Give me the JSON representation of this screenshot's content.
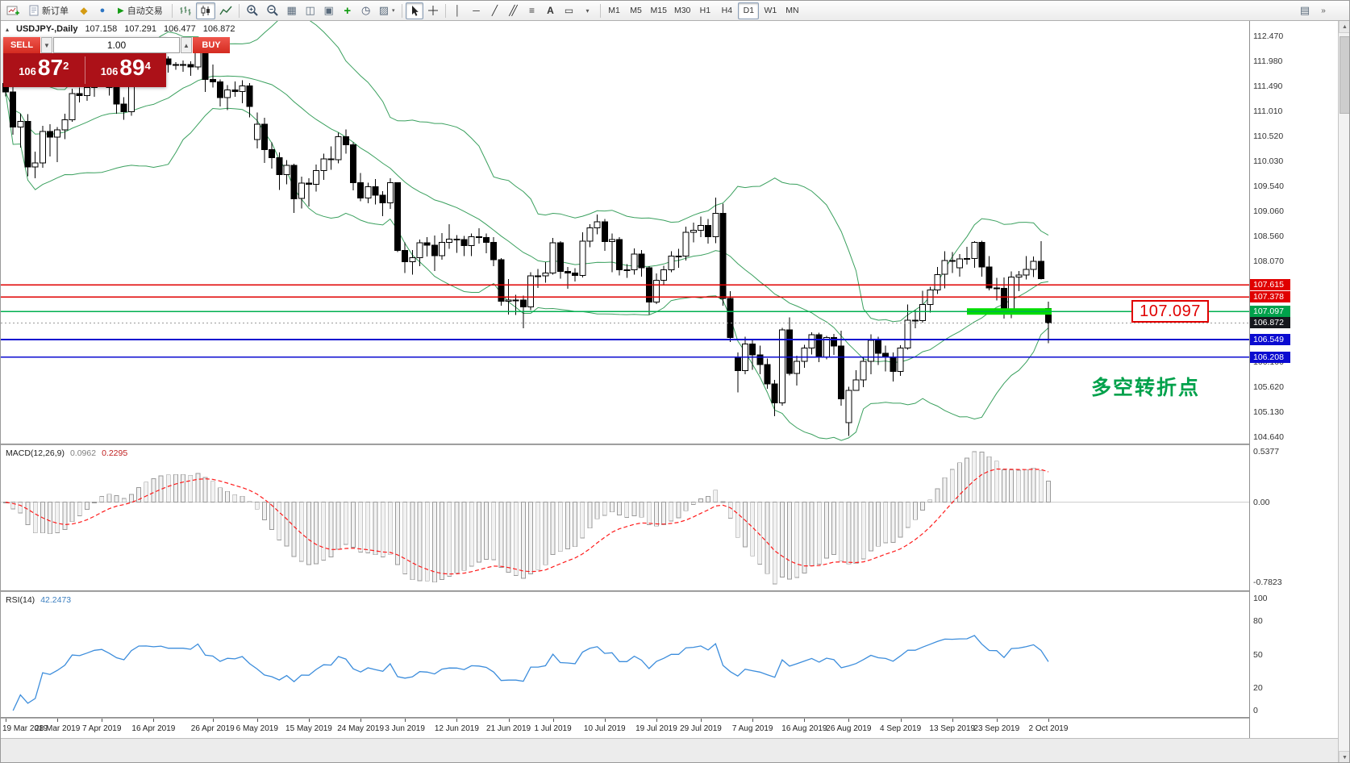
{
  "toolbar": {
    "new_order_label": "新订单",
    "auto_trading_label": "自动交易",
    "timeframes": [
      "M1",
      "M5",
      "M15",
      "M30",
      "H1",
      "H4",
      "D1",
      "W1",
      "MN"
    ],
    "active_timeframe": "D1",
    "icons": [
      "new-chart",
      "new-order-sheet",
      "gold",
      "accounts",
      "auto-trading-play",
      "bar-chart",
      "candlestick-chart",
      "line-chart",
      "zoom-in",
      "zoom-out",
      "grid",
      "tile-windows",
      "cascade-windows",
      "indicators-add",
      "periods-clock",
      "templates",
      "templates-dropdown",
      "cursor",
      "crosshair",
      "vertical-line",
      "horizontal-line",
      "trendline",
      "equidistant-channel",
      "fibonacci",
      "text",
      "text-label",
      "shapes-dropdown",
      "chart-list",
      "toolbar-overflow",
      "scroll-up",
      "scroll-down"
    ]
  },
  "chart": {
    "symbol": "USDJPY-,Daily",
    "open": "107.158",
    "high": "107.291",
    "low": "106.477",
    "close": "106.872"
  },
  "trade_panel": {
    "sell_label": "SELL",
    "buy_label": "BUY",
    "volume": "1.00",
    "sell_base": "106",
    "sell_big": "87",
    "sell_pip": "2",
    "buy_base": "106",
    "buy_big": "89",
    "buy_pip": "4"
  },
  "levels": [
    {
      "price": 107.615,
      "label": "107.615",
      "line": "#e00000",
      "badge": "#e00000",
      "thick": 1.5
    },
    {
      "price": 107.378,
      "label": "107.378",
      "line": "#e00000",
      "badge": "#e00000",
      "thick": 1.5
    },
    {
      "price": 107.097,
      "label": "107.097",
      "line": "#00b050",
      "badge": "#00a14b",
      "thick": 1.5
    },
    {
      "price": 106.872,
      "label": "106.872",
      "line": "#999999",
      "badge": "#16181d",
      "thick": 0.8,
      "dash": true
    },
    {
      "price": 106.549,
      "label": "106.549",
      "line": "#0b0bd0",
      "badge": "#0b0bd0",
      "thick": 1.6
    },
    {
      "price": 106.208,
      "label": "106.208",
      "line": "#0b0bd0",
      "badge": "#0b0bd0",
      "thick": 1.6
    }
  ],
  "annotations": {
    "level_callout": "107.097",
    "turning_point": "多空转折点",
    "support_highlight_color": "#00dd00"
  },
  "price_axis": [
    "112.470",
    "111.980",
    "111.490",
    "111.010",
    "110.520",
    "110.030",
    "109.540",
    "109.060",
    "108.560",
    "108.070",
    "106.100",
    "105.620",
    "105.130",
    "104.640"
  ],
  "macd": {
    "label": "MACD(12,26,9)",
    "value": "0.0962",
    "signal": "0.2295",
    "axis": [
      "0.5377",
      "0.00",
      "-0.7823"
    ]
  },
  "rsi": {
    "label": "RSI(14)",
    "value": "42.2473",
    "axis": [
      "100",
      "80",
      "50",
      "20",
      "0"
    ]
  },
  "date_axis": [
    {
      "label": "19 Mar 2019",
      "i": 0
    },
    {
      "label": "28 Mar 2019",
      "i": 7
    },
    {
      "label": "7 Apr 2019",
      "i": 13
    },
    {
      "label": "16 Apr 2019",
      "i": 20
    },
    {
      "label": "26 Apr 2019",
      "i": 28
    },
    {
      "label": "6 May 2019",
      "i": 34
    },
    {
      "label": "15 May 2019",
      "i": 41
    },
    {
      "label": "24 May 2019",
      "i": 48
    },
    {
      "label": "3 Jun 2019",
      "i": 54
    },
    {
      "label": "12 Jun 2019",
      "i": 61
    },
    {
      "label": "21 Jun 2019",
      "i": 68
    },
    {
      "label": "1 Jul 2019",
      "i": 74
    },
    {
      "label": "10 Jul 2019",
      "i": 81
    },
    {
      "label": "19 Jul 2019",
      "i": 88
    },
    {
      "label": "29 Jul 2019",
      "i": 94
    },
    {
      "label": "7 Aug 2019",
      "i": 101
    },
    {
      "label": "16 Aug 2019",
      "i": 108
    },
    {
      "label": "26 Aug 2019",
      "i": 114
    },
    {
      "label": "4 Sep 2019",
      "i": 121
    },
    {
      "label": "13 Sep 2019",
      "i": 128
    },
    {
      "label": "23 Sep 2019",
      "i": 134
    },
    {
      "label": "2 Oct 2019",
      "i": 141
    }
  ],
  "chart_data": {
    "type": "candlestick",
    "symbol": "USDJPY",
    "timeframe": "Daily",
    "indicators": [
      "Bands",
      "MACD(12,26,9)",
      "RSI(14)"
    ],
    "ylim": [
      104.64,
      112.47
    ],
    "candles": [
      [
        111.55,
        111.62,
        111.3,
        111.38
      ],
      [
        111.38,
        111.5,
        110.55,
        110.7
      ],
      [
        110.7,
        110.96,
        110.3,
        110.81
      ],
      [
        110.81,
        110.95,
        109.74,
        109.92
      ],
      [
        109.92,
        110.22,
        109.7,
        110.0
      ],
      [
        110.0,
        110.72,
        109.9,
        110.61
      ],
      [
        110.61,
        110.75,
        110.12,
        110.5
      ],
      [
        110.5,
        110.7,
        110.01,
        110.64
      ],
      [
        110.64,
        110.96,
        110.46,
        110.84
      ],
      [
        110.84,
        111.45,
        110.8,
        111.35
      ],
      [
        111.35,
        111.47,
        111.18,
        111.31
      ],
      [
        111.31,
        111.58,
        111.21,
        111.47
      ],
      [
        111.47,
        111.72,
        111.29,
        111.66
      ],
      [
        111.66,
        111.82,
        111.55,
        111.72
      ],
      [
        111.72,
        111.76,
        111.31,
        111.47
      ],
      [
        111.47,
        111.52,
        110.96,
        111.15
      ],
      [
        111.15,
        111.28,
        110.84,
        111.0
      ],
      [
        111.0,
        111.68,
        110.92,
        111.64
      ],
      [
        111.64,
        112.07,
        111.58,
        112.02
      ],
      [
        112.02,
        112.09,
        111.86,
        112.03
      ],
      [
        112.03,
        112.12,
        111.83,
        111.98
      ],
      [
        111.98,
        112.16,
        111.92,
        112.03
      ],
      [
        112.03,
        112.08,
        111.76,
        111.92
      ],
      [
        111.92,
        111.97,
        111.82,
        111.92
      ],
      [
        111.92,
        112.0,
        111.78,
        111.92
      ],
      [
        111.92,
        111.98,
        111.7,
        111.87
      ],
      [
        111.87,
        112.2,
        111.82,
        112.17
      ],
      [
        112.17,
        112.19,
        111.38,
        111.63
      ],
      [
        111.63,
        111.92,
        111.47,
        111.58
      ],
      [
        111.58,
        111.63,
        111.1,
        111.27
      ],
      [
        111.27,
        111.52,
        111.03,
        111.42
      ],
      [
        111.42,
        111.59,
        111.29,
        111.39
      ],
      [
        111.39,
        111.61,
        111.16,
        111.5
      ],
      [
        111.5,
        111.56,
        110.89,
        111.1
      ],
      [
        110.45,
        110.98,
        110.28,
        110.75
      ],
      [
        110.75,
        110.88,
        110.0,
        110.26
      ],
      [
        110.26,
        110.4,
        109.89,
        110.1
      ],
      [
        110.1,
        110.2,
        109.47,
        109.77
      ],
      [
        109.77,
        110.05,
        109.58,
        109.95
      ],
      [
        109.95,
        109.98,
        109.02,
        109.3
      ],
      [
        109.3,
        109.73,
        109.11,
        109.6
      ],
      [
        109.6,
        109.7,
        109.15,
        109.58
      ],
      [
        109.58,
        109.97,
        109.44,
        109.85
      ],
      [
        109.85,
        110.18,
        109.67,
        110.08
      ],
      [
        110.08,
        110.32,
        109.86,
        110.06
      ],
      [
        110.06,
        110.59,
        109.99,
        110.51
      ],
      [
        110.51,
        110.65,
        110.18,
        110.35
      ],
      [
        110.35,
        110.4,
        109.46,
        109.61
      ],
      [
        109.61,
        109.8,
        109.25,
        109.31
      ],
      [
        109.31,
        109.61,
        109.21,
        109.53
      ],
      [
        109.53,
        109.68,
        109.19,
        109.37
      ],
      [
        109.37,
        109.45,
        108.96,
        109.22
      ],
      [
        109.22,
        109.7,
        109.1,
        109.61
      ],
      [
        109.61,
        109.62,
        108.26,
        108.29
      ],
      [
        108.29,
        108.45,
        107.85,
        108.07
      ],
      [
        108.07,
        108.3,
        107.82,
        108.15
      ],
      [
        108.15,
        108.5,
        107.98,
        108.44
      ],
      [
        108.44,
        108.55,
        108.17,
        108.39
      ],
      [
        108.39,
        108.58,
        107.89,
        108.19
      ],
      [
        108.19,
        108.63,
        108.11,
        108.45
      ],
      [
        108.45,
        108.8,
        108.32,
        108.51
      ],
      [
        108.51,
        108.59,
        108.24,
        108.5
      ],
      [
        108.5,
        108.57,
        108.18,
        108.38
      ],
      [
        108.38,
        108.62,
        108.18,
        108.56
      ],
      [
        108.56,
        108.72,
        108.42,
        108.54
      ],
      [
        108.54,
        108.62,
        108.23,
        108.45
      ],
      [
        108.45,
        108.55,
        107.98,
        108.11
      ],
      [
        108.11,
        108.14,
        107.21,
        107.3
      ],
      [
        107.3,
        107.73,
        107.04,
        107.32
      ],
      [
        107.32,
        107.42,
        107.03,
        107.32
      ],
      [
        107.32,
        107.41,
        106.77,
        107.19
      ],
      [
        107.19,
        107.86,
        107.12,
        107.79
      ],
      [
        107.79,
        107.93,
        107.56,
        107.79
      ],
      [
        107.79,
        108.06,
        107.66,
        107.85
      ],
      [
        107.85,
        108.53,
        107.82,
        108.44
      ],
      [
        108.44,
        108.47,
        107.74,
        107.88
      ],
      [
        107.88,
        107.97,
        107.54,
        107.85
      ],
      [
        107.85,
        107.94,
        107.68,
        107.8
      ],
      [
        107.8,
        108.64,
        107.76,
        108.47
      ],
      [
        108.47,
        108.8,
        108.35,
        108.73
      ],
      [
        108.73,
        108.99,
        108.6,
        108.85
      ],
      [
        108.85,
        108.9,
        108.28,
        108.46
      ],
      [
        108.46,
        108.62,
        107.86,
        108.5
      ],
      [
        108.5,
        108.55,
        107.8,
        107.91
      ],
      [
        107.91,
        108.02,
        107.75,
        107.91
      ],
      [
        107.91,
        108.33,
        107.82,
        108.22
      ],
      [
        108.22,
        108.3,
        107.78,
        107.95
      ],
      [
        107.95,
        107.98,
        107.04,
        107.28
      ],
      [
        107.28,
        107.84,
        107.24,
        107.71
      ],
      [
        107.71,
        107.99,
        107.63,
        107.91
      ],
      [
        107.91,
        108.27,
        107.86,
        108.18
      ],
      [
        108.18,
        108.32,
        107.95,
        108.18
      ],
      [
        108.18,
        108.75,
        108.09,
        108.64
      ],
      [
        108.64,
        108.83,
        108.45,
        108.68
      ],
      [
        108.68,
        108.95,
        108.55,
        108.78
      ],
      [
        108.78,
        108.9,
        108.42,
        108.56
      ],
      [
        108.56,
        109.32,
        108.43,
        109.01
      ],
      [
        109.01,
        109.2,
        107.21,
        107.35
      ],
      [
        107.35,
        107.49,
        106.5,
        106.59
      ],
      [
        106.2,
        106.3,
        105.52,
        105.94
      ],
      [
        105.94,
        106.6,
        105.87,
        106.46
      ],
      [
        106.46,
        106.56,
        105.96,
        106.25
      ],
      [
        106.25,
        106.43,
        105.87,
        106.06
      ],
      [
        106.06,
        106.18,
        105.59,
        105.68
      ],
      [
        105.68,
        105.76,
        105.05,
        105.31
      ],
      [
        105.31,
        106.78,
        105.26,
        106.74
      ],
      [
        106.74,
        106.98,
        105.85,
        105.89
      ],
      [
        105.89,
        106.23,
        105.65,
        106.12
      ],
      [
        106.12,
        106.45,
        106.0,
        106.38
      ],
      [
        106.38,
        106.69,
        106.26,
        106.64
      ],
      [
        106.64,
        106.68,
        106.11,
        106.21
      ],
      [
        106.21,
        106.62,
        106.16,
        106.59
      ],
      [
        106.59,
        106.66,
        106.25,
        106.42
      ],
      [
        106.42,
        106.72,
        105.26,
        105.39
      ],
      [
        104.93,
        105.63,
        104.67,
        105.56
      ],
      [
        105.56,
        105.95,
        105.55,
        105.76
      ],
      [
        105.76,
        106.22,
        105.62,
        106.12
      ],
      [
        106.12,
        106.65,
        105.87,
        106.53
      ],
      [
        106.53,
        106.6,
        106.05,
        106.28
      ],
      [
        106.28,
        106.43,
        105.93,
        106.21
      ],
      [
        106.21,
        106.3,
        105.73,
        105.93
      ],
      [
        105.93,
        106.44,
        105.84,
        106.38
      ],
      [
        106.38,
        107.23,
        106.35,
        106.93
      ],
      [
        106.93,
        107.12,
        106.77,
        106.92
      ],
      [
        106.92,
        107.5,
        106.88,
        107.23
      ],
      [
        107.23,
        107.58,
        107.08,
        107.52
      ],
      [
        107.52,
        107.97,
        107.44,
        107.82
      ],
      [
        107.82,
        108.27,
        107.55,
        108.09
      ],
      [
        108.09,
        108.26,
        107.85,
        108.08
      ],
      [
        107.95,
        108.22,
        107.78,
        108.12
      ],
      [
        108.12,
        108.36,
        108.01,
        108.13
      ],
      [
        108.13,
        108.47,
        107.95,
        108.45
      ],
      [
        108.45,
        108.48,
        107.78,
        107.97
      ],
      [
        107.97,
        108.18,
        107.51,
        107.56
      ],
      [
        107.56,
        107.75,
        107.31,
        107.55
      ],
      [
        107.55,
        107.76,
        106.96,
        107.07
      ],
      [
        107.07,
        107.88,
        106.97,
        107.77
      ],
      [
        107.77,
        107.89,
        107.49,
        107.81
      ],
      [
        107.81,
        108.18,
        107.72,
        107.92
      ],
      [
        107.92,
        108.17,
        107.77,
        108.08
      ],
      [
        108.08,
        108.47,
        107.72,
        107.74
      ],
      [
        107.158,
        107.291,
        106.477,
        106.872
      ]
    ]
  }
}
